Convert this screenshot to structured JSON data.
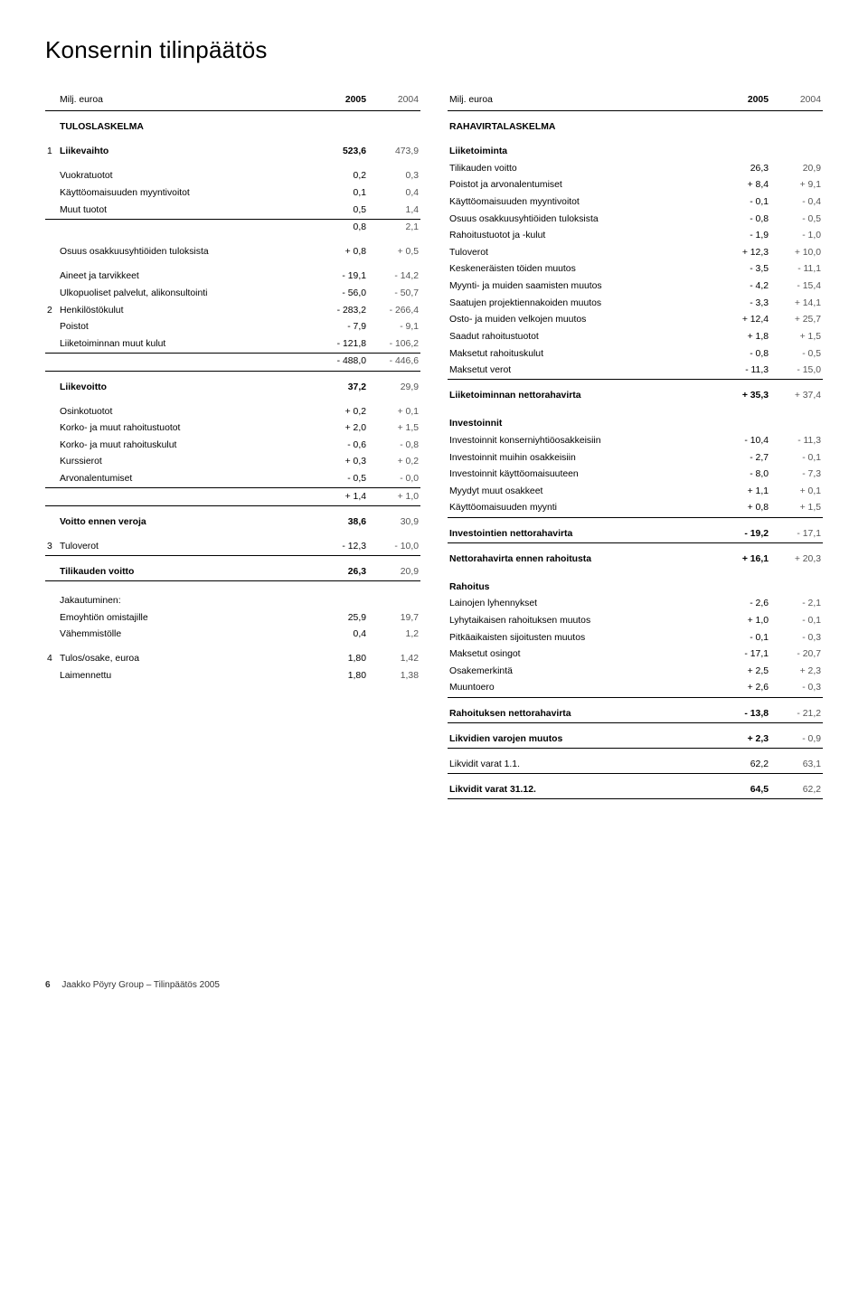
{
  "title": "Konsernin tilinpäätös",
  "unit_label": "Milj. euroa",
  "year1": "2005",
  "year2": "2004",
  "left": {
    "heading": "TULOSLASKELMA",
    "rows": [
      {
        "note": "1",
        "label": "Liikevaihto",
        "v1": "523,6",
        "v2": "473,9",
        "bold": true,
        "sp": true
      },
      {
        "label": "Vuokratuotot",
        "v1": "0,2",
        "v2": "0,3",
        "sp": true
      },
      {
        "label": "Käyttöomaisuuden myyntivoitot",
        "v1": "0,1",
        "v2": "0,4"
      },
      {
        "label": "Muut tuotot",
        "v1": "0,5",
        "v2": "1,4"
      },
      {
        "label": "",
        "v1": "0,8",
        "v2": "2,1",
        "bt": true
      },
      {
        "label": "Osuus osakkuusyhtiöiden tuloksista",
        "v1": "+ 0,8",
        "v2": "+ 0,5",
        "sp": true
      },
      {
        "label": "Aineet ja tarvikkeet",
        "v1": "- 19,1",
        "v2": "- 14,2",
        "sp": true
      },
      {
        "label": "Ulkopuoliset palvelut, alikonsultointi",
        "v1": "- 56,0",
        "v2": "- 50,7"
      },
      {
        "note": "2",
        "label": "Henkilöstökulut",
        "v1": "- 283,2",
        "v2": "- 266,4"
      },
      {
        "label": "Poistot",
        "v1": "- 7,9",
        "v2": "- 9,1"
      },
      {
        "label": "Liiketoiminnan muut kulut",
        "v1": "- 121,8",
        "v2": "- 106,2"
      },
      {
        "label": "",
        "v1": "- 488,0",
        "v2": "- 446,6",
        "bt": true
      },
      {
        "label": "Liikevoitto",
        "v1": "37,2",
        "v2": "29,9",
        "bold": true,
        "bt": true,
        "sp": true
      },
      {
        "label": "Osinkotuotot",
        "v1": "+ 0,2",
        "v2": "+ 0,1",
        "sp": true
      },
      {
        "label": "Korko- ja muut rahoitustuotot",
        "v1": "+ 2,0",
        "v2": "+ 1,5"
      },
      {
        "label": "Korko- ja muut rahoituskulut",
        "v1": "- 0,6",
        "v2": "- 0,8"
      },
      {
        "label": "Kurssierot",
        "v1": "+ 0,3",
        "v2": "+ 0,2"
      },
      {
        "label": "Arvonalentumiset",
        "v1": "- 0,5",
        "v2": "- 0,0"
      },
      {
        "label": "",
        "v1": "+ 1,4",
        "v2": "+ 1,0",
        "bt": true
      },
      {
        "label": "Voitto ennen veroja",
        "v1": "38,6",
        "v2": "30,9",
        "bold": true,
        "bt": true,
        "sp": true
      },
      {
        "note": "3",
        "label": "Tuloverot",
        "v1": "- 12,3",
        "v2": "- 10,0",
        "sp": true
      },
      {
        "label": "Tilikauden voitto",
        "v1": "26,3",
        "v2": "20,9",
        "bold": true,
        "bt": true,
        "bb": true,
        "sp": true
      },
      {
        "label": "Jakautuminen:",
        "v1": "",
        "v2": "",
        "sp2": true
      },
      {
        "label": "Emoyhtiön omistajille",
        "v1": "25,9",
        "v2": "19,7"
      },
      {
        "label": "Vähemmistölle",
        "v1": "0,4",
        "v2": "1,2"
      },
      {
        "note": "4",
        "label": "Tulos/osake, euroa",
        "v1": "1,80",
        "v2": "1,42",
        "sp": true
      },
      {
        "label": "Laimennettu",
        "v1": "1,80",
        "v2": "1,38"
      }
    ]
  },
  "right": {
    "heading": "RAHAVIRTALASKELMA",
    "rows": [
      {
        "label": "Liiketoiminta",
        "bold": true,
        "sp": true
      },
      {
        "label": "Tilikauden voitto",
        "v1": "26,3",
        "v2": "20,9"
      },
      {
        "label": "Poistot ja arvonalentumiset",
        "v1": "+ 8,4",
        "v2": "+ 9,1"
      },
      {
        "label": "Käyttöomaisuuden myyntivoitot",
        "v1": "- 0,1",
        "v2": "- 0,4"
      },
      {
        "label": "Osuus osakkuusyhtiöiden tuloksista",
        "v1": "- 0,8",
        "v2": "- 0,5"
      },
      {
        "label": "Rahoitustuotot ja -kulut",
        "v1": "- 1,9",
        "v2": "- 1,0"
      },
      {
        "label": "Tuloverot",
        "v1": "+ 12,3",
        "v2": "+ 10,0"
      },
      {
        "label": "Keskeneräisten töiden muutos",
        "v1": "- 3,5",
        "v2": "- 11,1"
      },
      {
        "label": "Myynti- ja muiden saamisten muutos",
        "v1": "- 4,2",
        "v2": "- 15,4"
      },
      {
        "label": "Saatujen projektiennakoiden muutos",
        "v1": "- 3,3",
        "v2": "+ 14,1"
      },
      {
        "label": "Osto- ja muiden velkojen muutos",
        "v1": "+ 12,4",
        "v2": "+ 25,7"
      },
      {
        "label": "Saadut rahoitustuotot",
        "v1": "+ 1,8",
        "v2": "+ 1,5"
      },
      {
        "label": "Maksetut rahoituskulut",
        "v1": "- 0,8",
        "v2": "- 0,5"
      },
      {
        "label": "Maksetut verot",
        "v1": "- 11,3",
        "v2": "- 15,0"
      },
      {
        "label": "Liiketoiminnan nettorahavirta",
        "v1": "+ 35,3",
        "v2": "+ 37,4",
        "bold": true,
        "bt": true,
        "sp": true
      },
      {
        "label": "Investoinnit",
        "bold": true,
        "sp2": true
      },
      {
        "label": "Investoinnit konserniyhtiöosakkeisiin",
        "v1": "- 10,4",
        "v2": "- 11,3"
      },
      {
        "label": "Investoinnit muihin osakkeisiin",
        "v1": "- 2,7",
        "v2": "- 0,1"
      },
      {
        "label": "Investoinnit käyttöomaisuuteen",
        "v1": "- 8,0",
        "v2": "- 7,3"
      },
      {
        "label": "Myydyt muut osakkeet",
        "v1": "+ 1,1",
        "v2": "+ 0,1"
      },
      {
        "label": "Käyttöomaisuuden myynti",
        "v1": "+ 0,8",
        "v2": "+ 1,5"
      },
      {
        "label": "Investointien nettorahavirta",
        "v1": "- 19,2",
        "v2": "- 17,1",
        "bold": true,
        "bt": true,
        "sp": true
      },
      {
        "label": "Nettorahavirta ennen rahoitusta",
        "v1": "+ 16,1",
        "v2": "+ 20,3",
        "bold": true,
        "bt": true,
        "sp": true
      },
      {
        "label": "Rahoitus",
        "bold": true,
        "sp2": true
      },
      {
        "label": "Lainojen lyhennykset",
        "v1": "- 2,6",
        "v2": "- 2,1"
      },
      {
        "label": "Lyhytaikaisen rahoituksen muutos",
        "v1": "+ 1,0",
        "v2": "- 0,1"
      },
      {
        "label": "Pitkäaikaisten sijoitusten muutos",
        "v1": "- 0,1",
        "v2": "- 0,3"
      },
      {
        "label": "Maksetut osingot",
        "v1": "- 17,1",
        "v2": "- 20,7"
      },
      {
        "label": "Osakemerkintä",
        "v1": "+ 2,5",
        "v2": "+ 2,3"
      },
      {
        "label": "Muuntoero",
        "v1": "+ 2,6",
        "v2": "- 0,3"
      },
      {
        "label": "Rahoituksen nettorahavirta",
        "v1": "- 13,8",
        "v2": "- 21,2",
        "bold": true,
        "bt": true,
        "sp": true
      },
      {
        "label": "Likvidien varojen muutos",
        "v1": "+ 2,3",
        "v2": "- 0,9",
        "bold": true,
        "bt": true,
        "sp": true
      },
      {
        "label": "Likvidit varat 1.1.",
        "v1": "62,2",
        "v2": "63,1",
        "bt": true,
        "sp": true
      },
      {
        "label": "Likvidit varat 31.12.",
        "v1": "64,5",
        "v2": "62,2",
        "bold": true,
        "bt": true,
        "bb": true,
        "sp": true
      }
    ]
  },
  "footer": {
    "page": "6",
    "text": "Jaakko Pöyry Group – Tilinpäätös 2005"
  }
}
